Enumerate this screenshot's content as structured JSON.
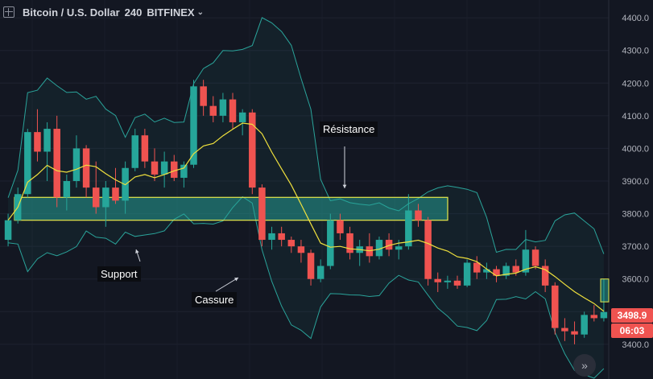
{
  "header": {
    "symbol": "Bitcoin / U.S. Dollar",
    "interval": "240",
    "exchange": "BITFINEX"
  },
  "price_axis": {
    "ticks": [
      "4400.0",
      "4300.0",
      "4200.0",
      "4100.0",
      "4000.0",
      "3900.0",
      "3800.0",
      "3700.0",
      "3600.0",
      "3500.0",
      "3400.0"
    ]
  },
  "last_price": "3498.9",
  "countdown": "06:03",
  "annotations": {
    "support": "Support",
    "resistance": "Résistance",
    "breakout": "Cassure"
  },
  "zone": {
    "price_low": 3780,
    "price_high": 3850
  },
  "colors": {
    "up": "#26a69a",
    "down": "#ef5350",
    "ma": "#f0e13d",
    "bands": "#2aa39a",
    "zone_fill": "#26a69a",
    "zone_border": "#e6e94d"
  },
  "chart_data": {
    "type": "candlestick",
    "ylim": [
      3380,
      4420
    ],
    "candles": [
      {
        "o": 3720,
        "h": 3800,
        "l": 3700,
        "c": 3780
      },
      {
        "o": 3780,
        "h": 3880,
        "l": 3770,
        "c": 3860
      },
      {
        "o": 3860,
        "h": 4060,
        "l": 3850,
        "c": 4050
      },
      {
        "o": 4050,
        "h": 4120,
        "l": 3960,
        "c": 3990
      },
      {
        "o": 3990,
        "h": 4080,
        "l": 3900,
        "c": 4060
      },
      {
        "o": 4060,
        "h": 4100,
        "l": 3820,
        "c": 3850
      },
      {
        "o": 3850,
        "h": 3920,
        "l": 3810,
        "c": 3900
      },
      {
        "o": 3900,
        "h": 4040,
        "l": 3880,
        "c": 4000
      },
      {
        "o": 4000,
        "h": 4010,
        "l": 3850,
        "c": 3880
      },
      {
        "o": 3880,
        "h": 3960,
        "l": 3800,
        "c": 3820
      },
      {
        "o": 3820,
        "h": 3900,
        "l": 3760,
        "c": 3880
      },
      {
        "o": 3880,
        "h": 3940,
        "l": 3830,
        "c": 3840
      },
      {
        "o": 3840,
        "h": 3960,
        "l": 3800,
        "c": 3940
      },
      {
        "o": 3940,
        "h": 4060,
        "l": 3930,
        "c": 4040
      },
      {
        "o": 4040,
        "h": 4060,
        "l": 3940,
        "c": 3960
      },
      {
        "o": 3960,
        "h": 4000,
        "l": 3900,
        "c": 3920
      },
      {
        "o": 3920,
        "h": 3990,
        "l": 3880,
        "c": 3960
      },
      {
        "o": 3960,
        "h": 3980,
        "l": 3900,
        "c": 3910
      },
      {
        "o": 3910,
        "h": 3960,
        "l": 3880,
        "c": 3950
      },
      {
        "o": 3950,
        "h": 4210,
        "l": 3940,
        "c": 4190
      },
      {
        "o": 4190,
        "h": 4210,
        "l": 4100,
        "c": 4130
      },
      {
        "o": 4130,
        "h": 4160,
        "l": 4080,
        "c": 4100
      },
      {
        "o": 4100,
        "h": 4170,
        "l": 4080,
        "c": 4150
      },
      {
        "o": 4150,
        "h": 4170,
        "l": 4060,
        "c": 4080
      },
      {
        "o": 4080,
        "h": 4120,
        "l": 4040,
        "c": 4110
      },
      {
        "o": 4110,
        "h": 4120,
        "l": 3860,
        "c": 3880
      },
      {
        "o": 3880,
        "h": 3890,
        "l": 3700,
        "c": 3720
      },
      {
        "o": 3720,
        "h": 3760,
        "l": 3690,
        "c": 3740
      },
      {
        "o": 3740,
        "h": 3760,
        "l": 3700,
        "c": 3720
      },
      {
        "o": 3720,
        "h": 3730,
        "l": 3680,
        "c": 3700
      },
      {
        "o": 3700,
        "h": 3720,
        "l": 3650,
        "c": 3680
      },
      {
        "o": 3680,
        "h": 3690,
        "l": 3580,
        "c": 3600
      },
      {
        "o": 3600,
        "h": 3660,
        "l": 3590,
        "c": 3640
      },
      {
        "o": 3640,
        "h": 3800,
        "l": 3630,
        "c": 3780
      },
      {
        "o": 3780,
        "h": 3800,
        "l": 3720,
        "c": 3740
      },
      {
        "o": 3740,
        "h": 3760,
        "l": 3660,
        "c": 3680
      },
      {
        "o": 3680,
        "h": 3720,
        "l": 3640,
        "c": 3700
      },
      {
        "o": 3700,
        "h": 3740,
        "l": 3650,
        "c": 3670
      },
      {
        "o": 3670,
        "h": 3730,
        "l": 3660,
        "c": 3720
      },
      {
        "o": 3720,
        "h": 3740,
        "l": 3670,
        "c": 3690
      },
      {
        "o": 3690,
        "h": 3720,
        "l": 3660,
        "c": 3700
      },
      {
        "o": 3700,
        "h": 3860,
        "l": 3690,
        "c": 3810
      },
      {
        "o": 3810,
        "h": 3830,
        "l": 3760,
        "c": 3780
      },
      {
        "o": 3780,
        "h": 3790,
        "l": 3580,
        "c": 3600
      },
      {
        "o": 3600,
        "h": 3620,
        "l": 3560,
        "c": 3590
      },
      {
        "o": 3590,
        "h": 3610,
        "l": 3570,
        "c": 3595
      },
      {
        "o": 3595,
        "h": 3610,
        "l": 3570,
        "c": 3580
      },
      {
        "o": 3580,
        "h": 3660,
        "l": 3575,
        "c": 3650
      },
      {
        "o": 3650,
        "h": 3670,
        "l": 3600,
        "c": 3620
      },
      {
        "o": 3620,
        "h": 3650,
        "l": 3600,
        "c": 3630
      },
      {
        "o": 3630,
        "h": 3640,
        "l": 3590,
        "c": 3610
      },
      {
        "o": 3610,
        "h": 3650,
        "l": 3600,
        "c": 3640
      },
      {
        "o": 3640,
        "h": 3660,
        "l": 3610,
        "c": 3620
      },
      {
        "o": 3620,
        "h": 3750,
        "l": 3610,
        "c": 3690
      },
      {
        "o": 3690,
        "h": 3700,
        "l": 3630,
        "c": 3640
      },
      {
        "o": 3640,
        "h": 3660,
        "l": 3560,
        "c": 3580
      },
      {
        "o": 3580,
        "h": 3590,
        "l": 3430,
        "c": 3450
      },
      {
        "o": 3450,
        "h": 3480,
        "l": 3410,
        "c": 3440
      },
      {
        "o": 3440,
        "h": 3470,
        "l": 3400,
        "c": 3430
      },
      {
        "o": 3430,
        "h": 3500,
        "l": 3420,
        "c": 3490
      },
      {
        "o": 3490,
        "h": 3520,
        "l": 3470,
        "c": 3480
      },
      {
        "o": 3480,
        "h": 3600,
        "l": 3470,
        "c": 3498.9
      }
    ]
  }
}
